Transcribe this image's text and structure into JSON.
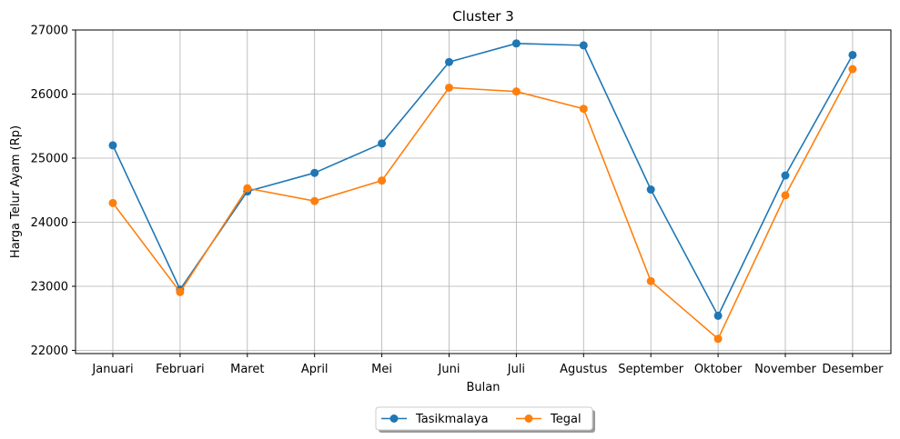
{
  "chart_data": {
    "type": "line",
    "title": "Cluster 3",
    "xlabel": "Bulan",
    "ylabel": "Harga Telur Ayam (Rp)",
    "categories": [
      "Januari",
      "Februari",
      "Maret",
      "April",
      "Mei",
      "Juni",
      "Juli",
      "Agustus",
      "September",
      "Oktober",
      "November",
      "Desember"
    ],
    "ylim": [
      21950,
      27000
    ],
    "yticks": [
      22000,
      23000,
      24000,
      25000,
      26000,
      27000
    ],
    "grid": true,
    "legend_position": "bottom-center",
    "series": [
      {
        "name": "Tasikmalaya",
        "color": "#1f77b4",
        "marker": "circle",
        "values": [
          25200,
          22950,
          24480,
          24770,
          25230,
          26500,
          26790,
          26760,
          24510,
          22540,
          24730,
          26610
        ]
      },
      {
        "name": "Tegal",
        "color": "#ff7f0e",
        "marker": "circle",
        "values": [
          24300,
          22910,
          24530,
          24330,
          24650,
          26100,
          26040,
          25770,
          23080,
          22180,
          24420,
          26390
        ]
      }
    ]
  }
}
